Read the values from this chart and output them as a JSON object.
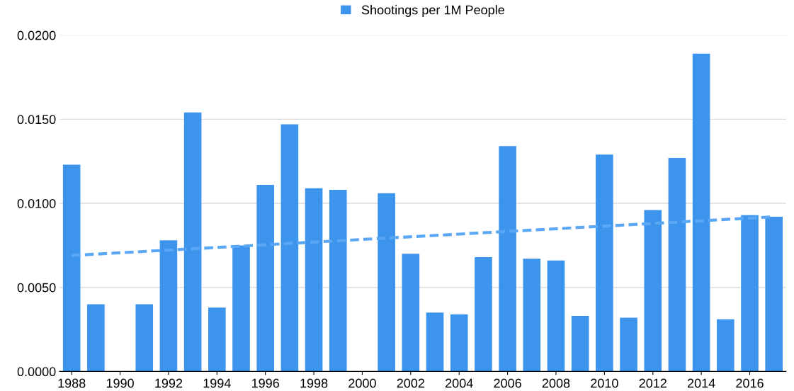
{
  "chart_data": {
    "type": "bar",
    "x": [
      1988,
      1989,
      1990,
      1991,
      1992,
      1993,
      1994,
      1995,
      1996,
      1997,
      1998,
      1999,
      2000,
      2001,
      2002,
      2003,
      2004,
      2005,
      2006,
      2007,
      2008,
      2009,
      2010,
      2011,
      2012,
      2013,
      2014,
      2015,
      2016,
      2017
    ],
    "series": [
      {
        "name": "Shootings per 1M People",
        "color": "#3d94ec",
        "values": [
          0.0123,
          0.004,
          0,
          0.004,
          0.0078,
          0.0154,
          0.0038,
          0.0075,
          0.0111,
          0.0147,
          0.0109,
          0.0108,
          0,
          0.0106,
          0.007,
          0.0035,
          0.0034,
          0.0068,
          0.0134,
          0.0067,
          0.0066,
          0.0033,
          0.0129,
          0.0032,
          0.0096,
          0.0127,
          0.0189,
          0.0031,
          0.0093,
          0.0092
        ]
      },
      {
        "type": "line",
        "color": "#5aa8f5",
        "line_style": "dashed",
        "x": [
          1988,
          2017
        ],
        "values": [
          0.0069,
          0.0092
        ]
      }
    ],
    "xlim": [
      1987.5,
      2017.5
    ],
    "xticks": [
      1988,
      1990,
      1992,
      1994,
      1996,
      1998,
      2000,
      2002,
      2004,
      2006,
      2008,
      2010,
      2012,
      2014,
      2016
    ],
    "ylim": [
      0,
      0.02
    ],
    "yticks": [
      {
        "value": 0,
        "label": "0.0000"
      },
      {
        "value": 0.005,
        "label": "0.0050"
      },
      {
        "value": 0.01,
        "label": "0.0100"
      },
      {
        "value": 0.015,
        "label": "0.0150"
      },
      {
        "value": 0.02,
        "label": "0.0200"
      }
    ],
    "grid": "y",
    "legend": "top"
  }
}
